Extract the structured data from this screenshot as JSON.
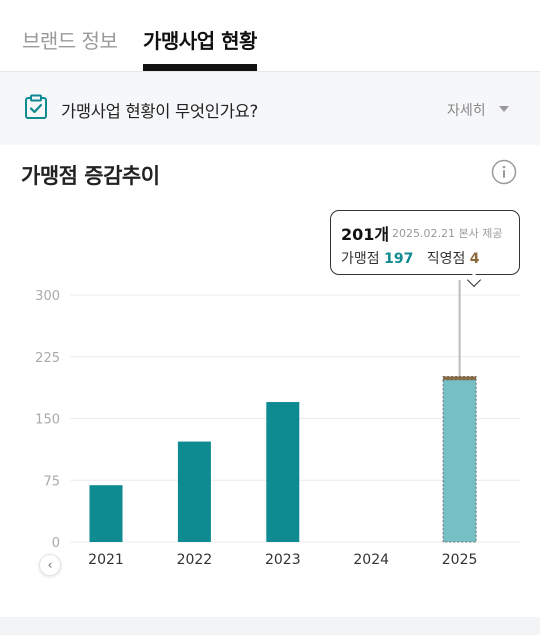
{
  "tabs": [
    {
      "label": "브랜드 정보",
      "active": false
    },
    {
      "label": "가맹사업 현황",
      "active": true
    }
  ],
  "faq": {
    "icon": "clipboard-check-icon",
    "question": "가맹사업 현황이 무엇인가요?",
    "more_label": "자세히"
  },
  "section": {
    "title": "가맹점 증감추이",
    "info_icon": "info-icon"
  },
  "colors": {
    "bar": "#0e8a91",
    "bar_selected": "#76bfc4",
    "direct": "#8a6a3a"
  },
  "tooltip": {
    "total": "201개",
    "meta": "2025.02.21 본사 제공",
    "franchise_label": "가맹점",
    "franchise_value": "197",
    "direct_label": "직영점",
    "direct_value": "4"
  },
  "chart_data": {
    "type": "bar",
    "categories": [
      "2021",
      "2022",
      "2023",
      "2024",
      "2025"
    ],
    "series": [
      {
        "name": "가맹점",
        "values": [
          69,
          122,
          170,
          0,
          197
        ]
      },
      {
        "name": "직영점",
        "values": [
          0,
          0,
          0,
          0,
          4
        ]
      }
    ],
    "stacked": true,
    "selected_category": "2025",
    "yticks": [
      0,
      75,
      150,
      225,
      300
    ],
    "ylim": [
      0,
      300
    ],
    "grid": true
  }
}
